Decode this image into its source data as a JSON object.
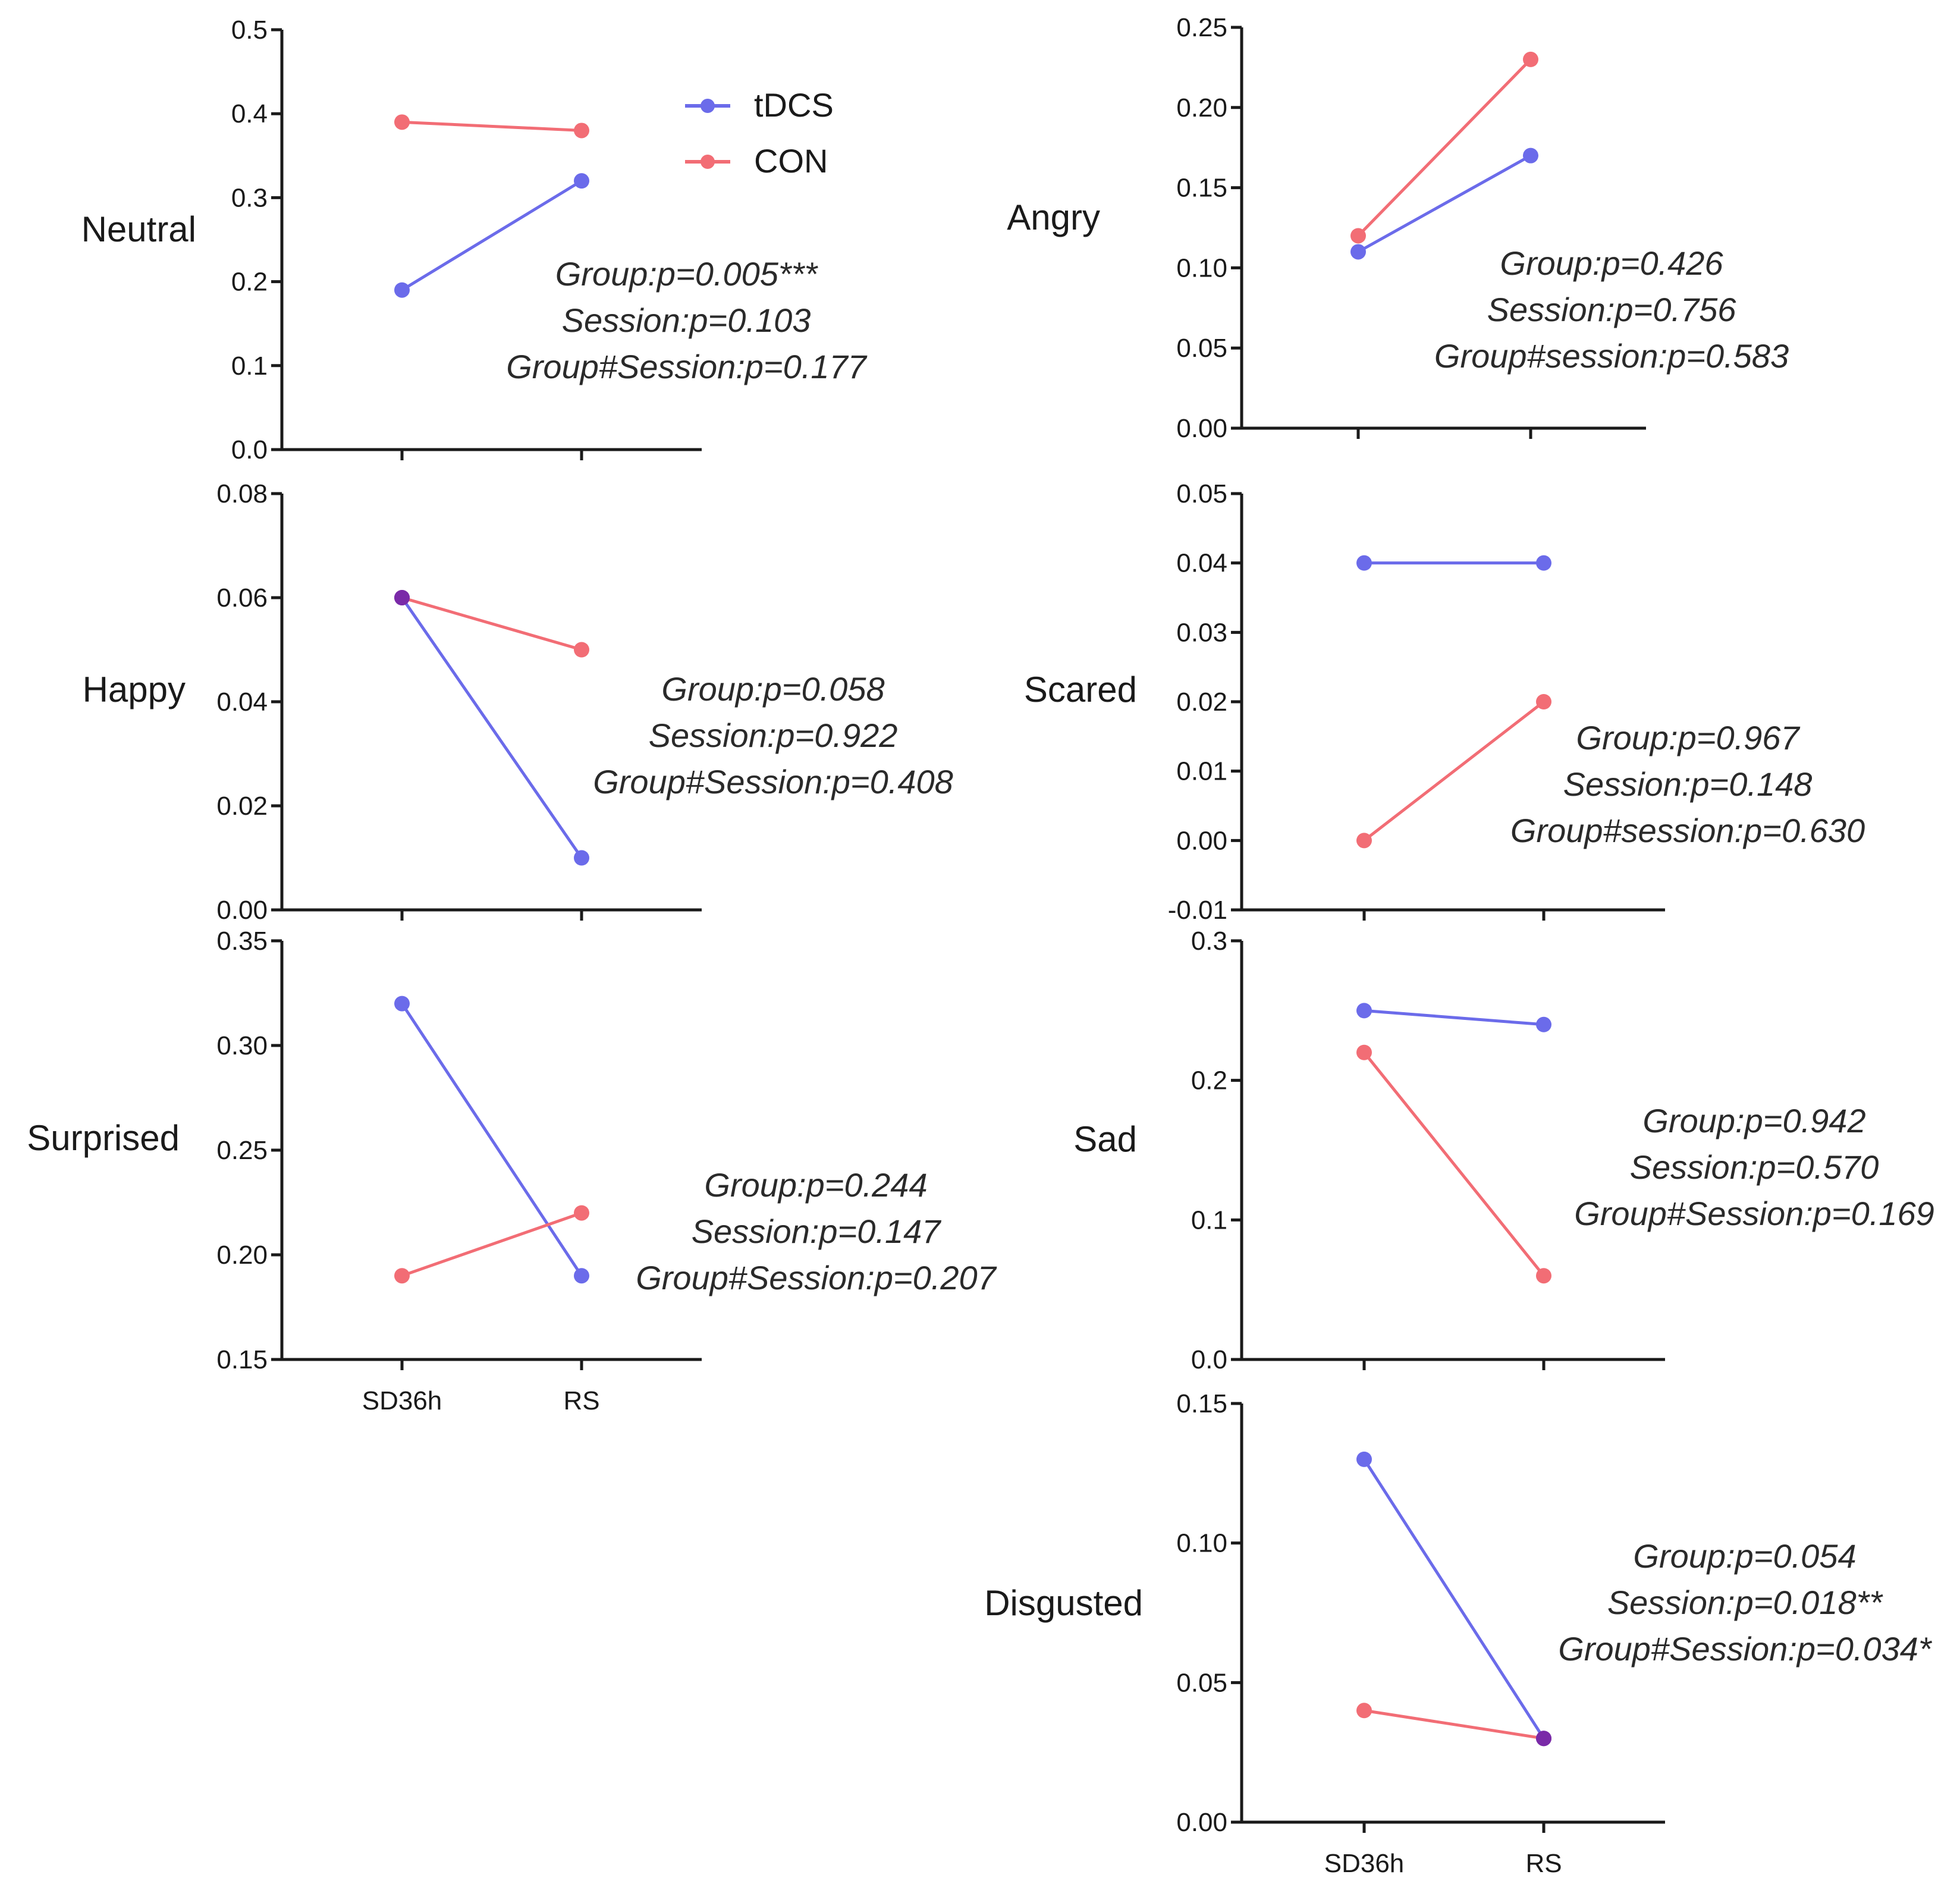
{
  "legend": {
    "series": [
      {
        "name": "tDCS",
        "color": "#6b6bea"
      },
      {
        "name": "CON",
        "color": "#f26d75"
      }
    ]
  },
  "overlap_color": "#7a2aa8",
  "chart_data": [
    {
      "type": "line",
      "title": "Neutral",
      "categories": [
        "SD36h",
        "RS"
      ],
      "ylim": [
        0,
        0.5
      ],
      "yticks": [
        "0.0",
        "0.1",
        "0.2",
        "0.3",
        "0.4",
        "0.5"
      ],
      "series": [
        {
          "name": "tDCS",
          "values": [
            0.19,
            0.32
          ]
        },
        {
          "name": "CON",
          "values": [
            0.39,
            0.38
          ]
        }
      ],
      "stats": [
        "Group:p=0.005***",
        "Session:p=0.103",
        "Group#Session:p=0.177"
      ]
    },
    {
      "type": "line",
      "title": "Angry",
      "categories": [
        "SD36h",
        "RS"
      ],
      "ylim": [
        0,
        0.25
      ],
      "yticks": [
        "0.00",
        "0.05",
        "0.10",
        "0.15",
        "0.20",
        "0.25"
      ],
      "series": [
        {
          "name": "tDCS",
          "values": [
            0.11,
            0.17
          ]
        },
        {
          "name": "CON",
          "values": [
            0.12,
            0.23
          ]
        }
      ],
      "stats": [
        "Group:p=0.426",
        "Session:p=0.756",
        "Group#session:p=0.583"
      ]
    },
    {
      "type": "line",
      "title": "Happy",
      "categories": [
        "SD36h",
        "RS"
      ],
      "ylim": [
        0,
        0.08
      ],
      "yticks": [
        "0.00",
        "0.02",
        "0.04",
        "0.06",
        "0.08"
      ],
      "series": [
        {
          "name": "tDCS",
          "values": [
            0.06,
            0.01
          ]
        },
        {
          "name": "CON",
          "values": [
            0.06,
            0.05
          ]
        }
      ],
      "stats": [
        "Group:p=0.058",
        "Session:p=0.922",
        "Group#Session:p=0.408"
      ]
    },
    {
      "type": "line",
      "title": "Scared",
      "categories": [
        "SD36h",
        "RS"
      ],
      "ylim": [
        -0.01,
        0.05
      ],
      "yticks": [
        "-0.01",
        "0.00",
        "0.01",
        "0.02",
        "0.03",
        "0.04",
        "0.05"
      ],
      "series": [
        {
          "name": "tDCS",
          "values": [
            0.04,
            0.04
          ]
        },
        {
          "name": "CON",
          "values": [
            0.0,
            0.02
          ]
        }
      ],
      "stats": [
        "Group:p=0.967",
        "Session:p=0.148",
        "Group#session:p=0.630"
      ]
    },
    {
      "type": "line",
      "title": "Surprised",
      "categories": [
        "SD36h",
        "RS"
      ],
      "ylim": [
        0.15,
        0.35
      ],
      "yticks": [
        "0.15",
        "0.20",
        "0.25",
        "0.30",
        "0.35"
      ],
      "series": [
        {
          "name": "tDCS",
          "values": [
            0.32,
            0.19
          ]
        },
        {
          "name": "CON",
          "values": [
            0.19,
            0.22
          ]
        }
      ],
      "stats": [
        "Group:p=0.244",
        "Session:p=0.147",
        "Group#Session:p=0.207"
      ]
    },
    {
      "type": "line",
      "title": "Sad",
      "categories": [
        "SD36h",
        "RS"
      ],
      "ylim": [
        0,
        0.3
      ],
      "yticks": [
        "0.0",
        "0.1",
        "0.2",
        "0.3"
      ],
      "series": [
        {
          "name": "tDCS",
          "values": [
            0.25,
            0.24
          ]
        },
        {
          "name": "CON",
          "values": [
            0.22,
            0.06
          ]
        }
      ],
      "stats": [
        "Group:p=0.942",
        "Session:p=0.570",
        "Group#Session:p=0.169"
      ]
    },
    {
      "type": "line",
      "title": "Disgusted",
      "categories": [
        "SD36h",
        "RS"
      ],
      "ylim": [
        0,
        0.15
      ],
      "yticks": [
        "0.00",
        "0.05",
        "0.10",
        "0.15"
      ],
      "series": [
        {
          "name": "tDCS",
          "values": [
            0.13,
            0.03
          ]
        },
        {
          "name": "CON",
          "values": [
            0.04,
            0.03
          ]
        }
      ],
      "stats": [
        "Group:p=0.054",
        "Session:p=0.018**",
        "Group#Session:p=0.034*"
      ]
    }
  ]
}
